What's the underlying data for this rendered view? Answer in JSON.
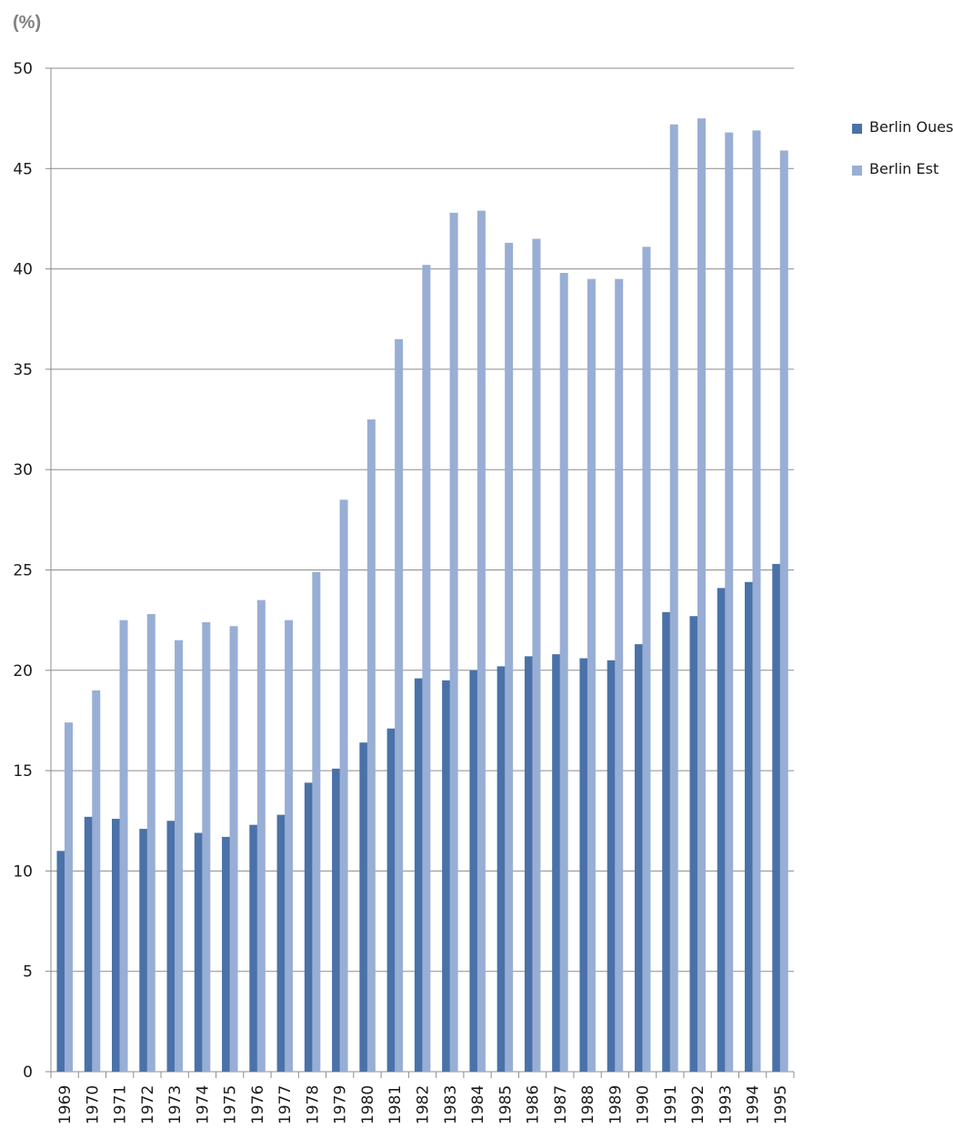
{
  "chart_data": {
    "type": "bar",
    "title": "",
    "ylabel": "(%)",
    "xlabel": "",
    "ylim": [
      0,
      50
    ],
    "yticks": [
      0,
      5,
      10,
      15,
      20,
      25,
      30,
      35,
      40,
      45,
      50
    ],
    "grid": true,
    "legend_position": "right",
    "categories": [
      "1969",
      "1970",
      "1971",
      "1972",
      "1973",
      "1974",
      "1975",
      "1976",
      "1977",
      "1978",
      "1979",
      "1980",
      "1981",
      "1982",
      "1983",
      "1984",
      "1985",
      "1986",
      "1987",
      "1988",
      "1989",
      "1990",
      "1991",
      "1992",
      "1993",
      "1994",
      "1995"
    ],
    "series": [
      {
        "name": "Berlin Ouest",
        "color": "#4a72a8",
        "values": [
          11.0,
          12.7,
          12.6,
          12.1,
          12.5,
          11.9,
          11.7,
          12.3,
          12.8,
          14.4,
          15.1,
          16.4,
          17.1,
          19.6,
          19.5,
          20.0,
          20.2,
          20.7,
          20.8,
          20.6,
          20.5,
          21.3,
          22.9,
          22.7,
          24.1,
          24.4,
          25.3
        ]
      },
      {
        "name": "Berlin Est",
        "color": "#98aed4",
        "values": [
          17.4,
          19.0,
          22.5,
          22.8,
          21.5,
          22.4,
          22.2,
          23.5,
          22.5,
          24.9,
          28.5,
          32.5,
          36.5,
          40.2,
          42.8,
          42.9,
          41.3,
          41.5,
          39.8,
          39.5,
          39.5,
          41.1,
          47.2,
          47.5,
          46.8,
          46.9,
          45.9
        ]
      }
    ]
  }
}
